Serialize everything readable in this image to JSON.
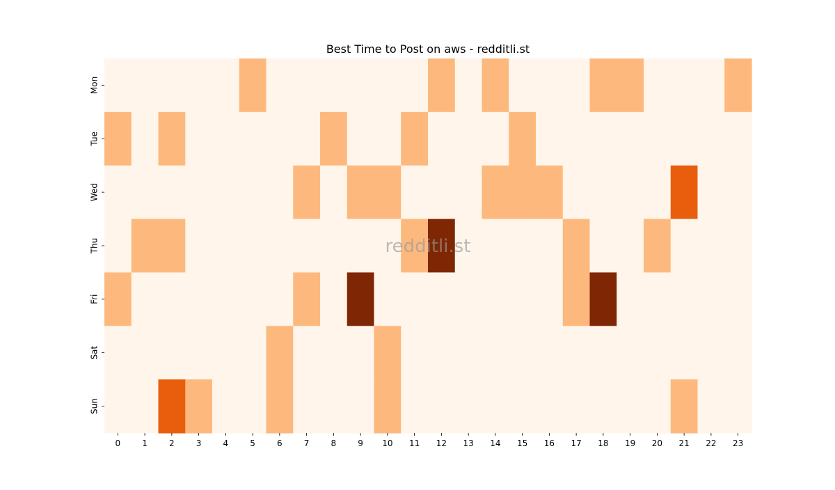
{
  "chart_data": {
    "type": "heatmap",
    "title": "Best Time to Post on aws - redditli.st",
    "watermark": "redditli.st",
    "x_labels": [
      "0",
      "1",
      "2",
      "3",
      "4",
      "5",
      "6",
      "7",
      "8",
      "9",
      "10",
      "11",
      "12",
      "13",
      "14",
      "15",
      "16",
      "17",
      "18",
      "19",
      "20",
      "21",
      "22",
      "23"
    ],
    "y_labels": [
      "Mon",
      "Tue",
      "Wed",
      "Thu",
      "Fri",
      "Sat",
      "Sun"
    ],
    "value_range": [
      0,
      3
    ],
    "values": [
      [
        0,
        0,
        0,
        0,
        0,
        1,
        0,
        0,
        0,
        0,
        0,
        0,
        1,
        0,
        1,
        0,
        0,
        0,
        1,
        1,
        0,
        0,
        0,
        1
      ],
      [
        1,
        0,
        1,
        0,
        0,
        0,
        0,
        0,
        1,
        0,
        0,
        1,
        0,
        0,
        0,
        1,
        0,
        0,
        0,
        0,
        0,
        0,
        0,
        0
      ],
      [
        0,
        0,
        0,
        0,
        0,
        0,
        0,
        1,
        0,
        1,
        1,
        0,
        0,
        0,
        1,
        1,
        1,
        0,
        0,
        0,
        0,
        2,
        0,
        0
      ],
      [
        0,
        1,
        1,
        0,
        0,
        0,
        0,
        0,
        0,
        0,
        0,
        1,
        3,
        0,
        0,
        0,
        0,
        1,
        0,
        0,
        1,
        0,
        0,
        0
      ],
      [
        1,
        0,
        0,
        0,
        0,
        0,
        0,
        1,
        0,
        3,
        0,
        0,
        0,
        0,
        0,
        0,
        0,
        1,
        3,
        0,
        0,
        0,
        0,
        0
      ],
      [
        0,
        0,
        0,
        0,
        0,
        0,
        1,
        0,
        0,
        0,
        1,
        0,
        0,
        0,
        0,
        0,
        0,
        0,
        0,
        0,
        0,
        0,
        0,
        0
      ],
      [
        0,
        0,
        2,
        1,
        0,
        0,
        1,
        0,
        0,
        0,
        1,
        0,
        0,
        0,
        0,
        0,
        0,
        0,
        0,
        0,
        0,
        1,
        0,
        0
      ]
    ],
    "colors": {
      "0": "#fff5eb",
      "1": "#fdb97d",
      "2": "#e95e0d",
      "3": "#7f2704"
    },
    "colorbar": false,
    "grid": false
  }
}
